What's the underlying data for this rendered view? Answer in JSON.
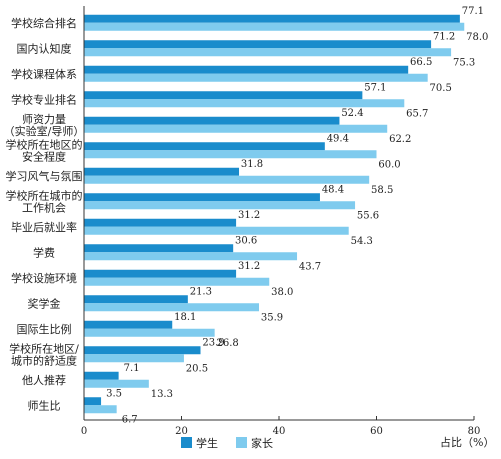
{
  "chart_data": {
    "type": "bar",
    "orientation": "horizontal",
    "categories": [
      "学校综合排名",
      "国内认知度",
      "学校课程体系",
      "学校专业排名",
      "师资力量\n（实验室/导师）",
      "学校所在地区的\n安全程度",
      "学习风气与氛围",
      "学校所在城市的\n工作机会",
      "毕业后就业率",
      "学费",
      "学校设施环境",
      "奖学金",
      "国际生比例",
      "学校所在地区/\n城市的舒适度",
      "他人推荐",
      "师生比"
    ],
    "series": [
      {
        "name": "学生",
        "color": "#1a8ccc",
        "values": [
          77.1,
          71.2,
          66.5,
          57.1,
          52.4,
          49.4,
          31.8,
          48.4,
          31.2,
          30.6,
          31.2,
          21.3,
          18.1,
          23.9,
          7.1,
          3.5
        ]
      },
      {
        "name": "家长",
        "color": "#7fcbee",
        "values": [
          78.0,
          75.3,
          70.5,
          65.7,
          62.2,
          60.0,
          58.5,
          55.6,
          54.3,
          43.7,
          38.0,
          35.9,
          26.8,
          20.5,
          13.3,
          6.7
        ]
      }
    ],
    "xlabel": "占比（%）",
    "xlim": [
      0,
      80
    ],
    "xticks": [
      0,
      20,
      40,
      60,
      80
    ],
    "legend_position": "bottom-center",
    "grid": false
  }
}
